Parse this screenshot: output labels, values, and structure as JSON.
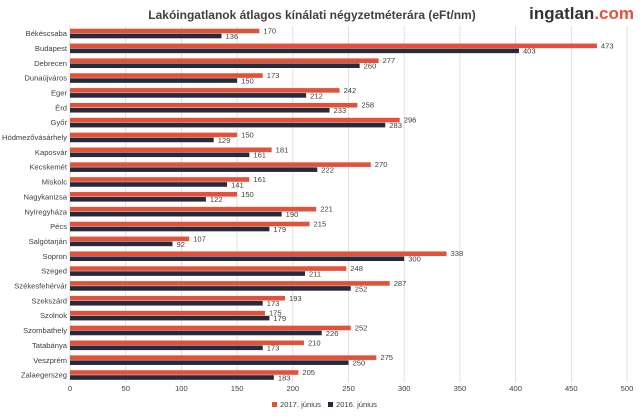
{
  "colors": {
    "series_2017": "#e2523a",
    "series_2016": "#262a3b",
    "logo_accent": "#e2523a",
    "gridline": "#d9d9d9",
    "text": "#404040"
  },
  "logo": {
    "main": "ingatlan",
    "accent": ".com"
  },
  "chart_data": {
    "type": "bar",
    "orientation": "horizontal",
    "title": "Lakóingatlanok átlagos kínálati négyzetméterára (eFt/nm)",
    "categories": [
      "Békéscsaba",
      "Budapest",
      "Debrecen",
      "Dunaújváros",
      "Eger",
      "Érd",
      "Győr",
      "Hódmezővásárhely",
      "Kaposvár",
      "Kecskemét",
      "Miskolc",
      "Nagykanizsa",
      "Nyíregyháza",
      "Pécs",
      "Salgótarján",
      "Sopron",
      "Szeged",
      "Székesfehérvár",
      "Szekszárd",
      "Szolnok",
      "Szombathely",
      "Tatabánya",
      "Veszprém",
      "Zalaegerszeg"
    ],
    "series": [
      {
        "name": "2017. június",
        "color": "#e2523a",
        "values": [
          170,
          473,
          277,
          173,
          242,
          258,
          296,
          150,
          181,
          270,
          161,
          150,
          221,
          215,
          107,
          338,
          248,
          287,
          193,
          175,
          252,
          210,
          275,
          205
        ]
      },
      {
        "name": "2016. június",
        "color": "#262a3b",
        "values": [
          136,
          403,
          260,
          150,
          212,
          233,
          283,
          129,
          161,
          222,
          141,
          122,
          190,
          179,
          92,
          300,
          211,
          252,
          173,
          179,
          226,
          173,
          250,
          183
        ]
      }
    ],
    "xlim": [
      0,
      500
    ],
    "x_ticks": [
      0,
      50,
      100,
      150,
      200,
      250,
      300,
      350,
      400,
      450,
      500
    ],
    "grid": "vertical",
    "legend_position": "bottom-center",
    "xlabel": "",
    "ylabel": ""
  }
}
